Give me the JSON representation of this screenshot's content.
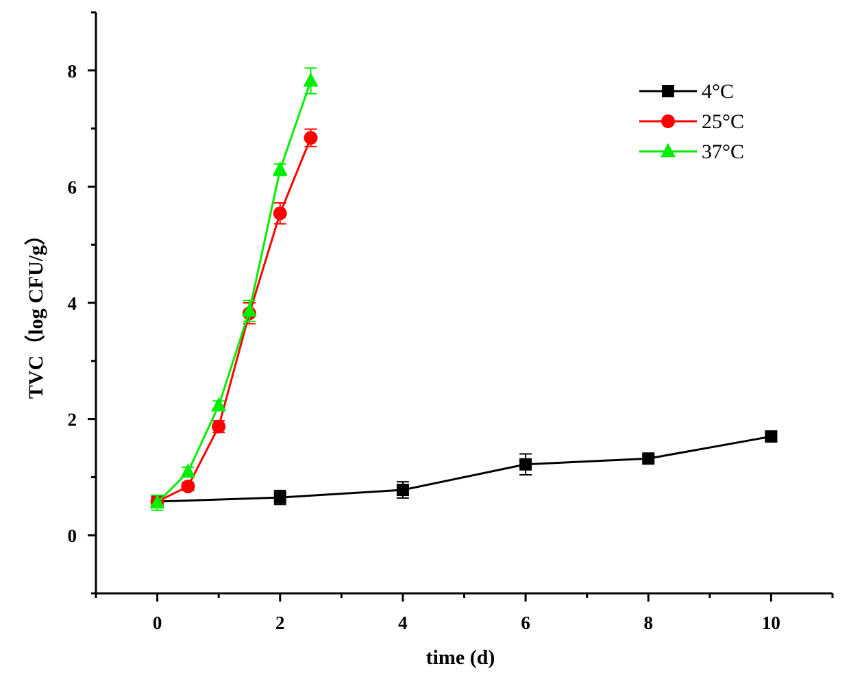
{
  "chart_data": {
    "type": "line",
    "title": "",
    "xlabel": "time (d)",
    "ylabel": "TVC（log CFU/g）",
    "xlim": [
      -1,
      11
    ],
    "ylim": [
      -1,
      9
    ],
    "xticks": [
      0,
      2,
      4,
      6,
      8,
      10
    ],
    "xticks_minor": [
      -1,
      1,
      3,
      5,
      7,
      9,
      11
    ],
    "yticks": [
      0,
      2,
      4,
      6,
      8
    ],
    "yticks_minor": [
      -1,
      1,
      3,
      5,
      7,
      9
    ],
    "grid": false,
    "legend_position": "top-right",
    "series": [
      {
        "name": "4°C",
        "color": "#000000",
        "marker": "square",
        "x": [
          0,
          2,
          4,
          6,
          8,
          10
        ],
        "y": [
          0.58,
          0.65,
          0.78,
          1.22,
          1.32,
          1.7
        ],
        "err": [
          0.06,
          0.12,
          0.14,
          0.18,
          0.06,
          0.07
        ]
      },
      {
        "name": "25°C",
        "color": "#ff0000",
        "marker": "circle",
        "x": [
          0,
          0.5,
          1,
          1.5,
          2,
          2.5
        ],
        "y": [
          0.58,
          0.84,
          1.87,
          3.82,
          5.54,
          6.84
        ],
        "err": [
          0.08,
          0.07,
          0.1,
          0.18,
          0.18,
          0.15
        ]
      },
      {
        "name": "37°C",
        "color": "#00ee00",
        "marker": "triangle",
        "x": [
          0,
          0.5,
          1,
          1.5,
          2,
          2.5
        ],
        "y": [
          0.56,
          1.09,
          2.23,
          3.86,
          6.29,
          7.82
        ],
        "err": [
          0.13,
          0.08,
          0.08,
          0.18,
          0.1,
          0.22
        ]
      }
    ]
  }
}
